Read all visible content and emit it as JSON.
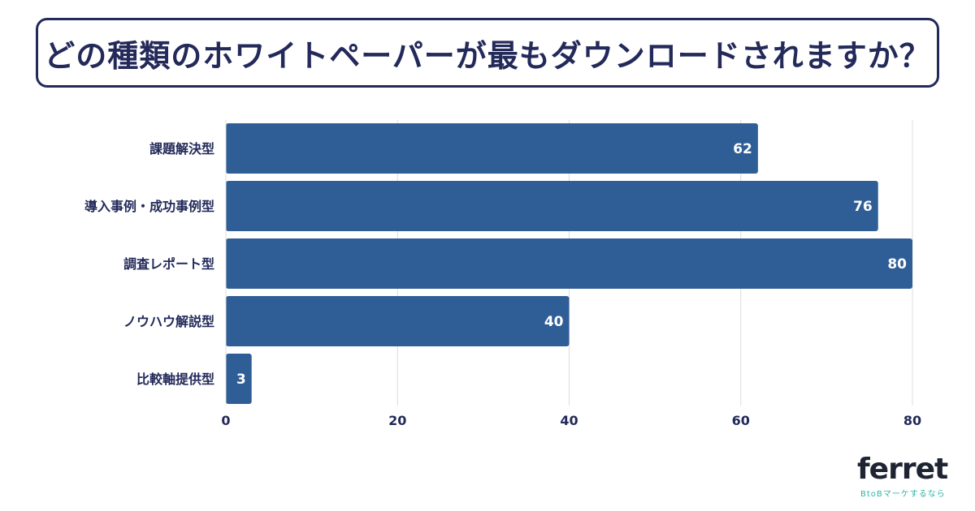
{
  "title": "どの種類のホワイトペーパーが最もダウンロードされますか？",
  "colors": {
    "bar": "#2f5e96",
    "text": "#232a5a",
    "grid": "#dcdcdc",
    "logo_accent": "#2cb5a8"
  },
  "logo": {
    "word": "ferret",
    "tagline": "BtoBマーケするなら"
  },
  "chart_data": {
    "type": "bar",
    "orientation": "horizontal",
    "categories": [
      "課題解決型",
      "導入事例・成功事例型",
      "調査レポート型",
      "ノウハウ解説型",
      "比較軸提供型"
    ],
    "values": [
      62,
      76,
      80,
      40,
      3
    ],
    "xlim": [
      0,
      80
    ],
    "xticks": [
      0,
      20,
      40,
      60,
      80
    ],
    "grid": true,
    "data_labels": true
  }
}
